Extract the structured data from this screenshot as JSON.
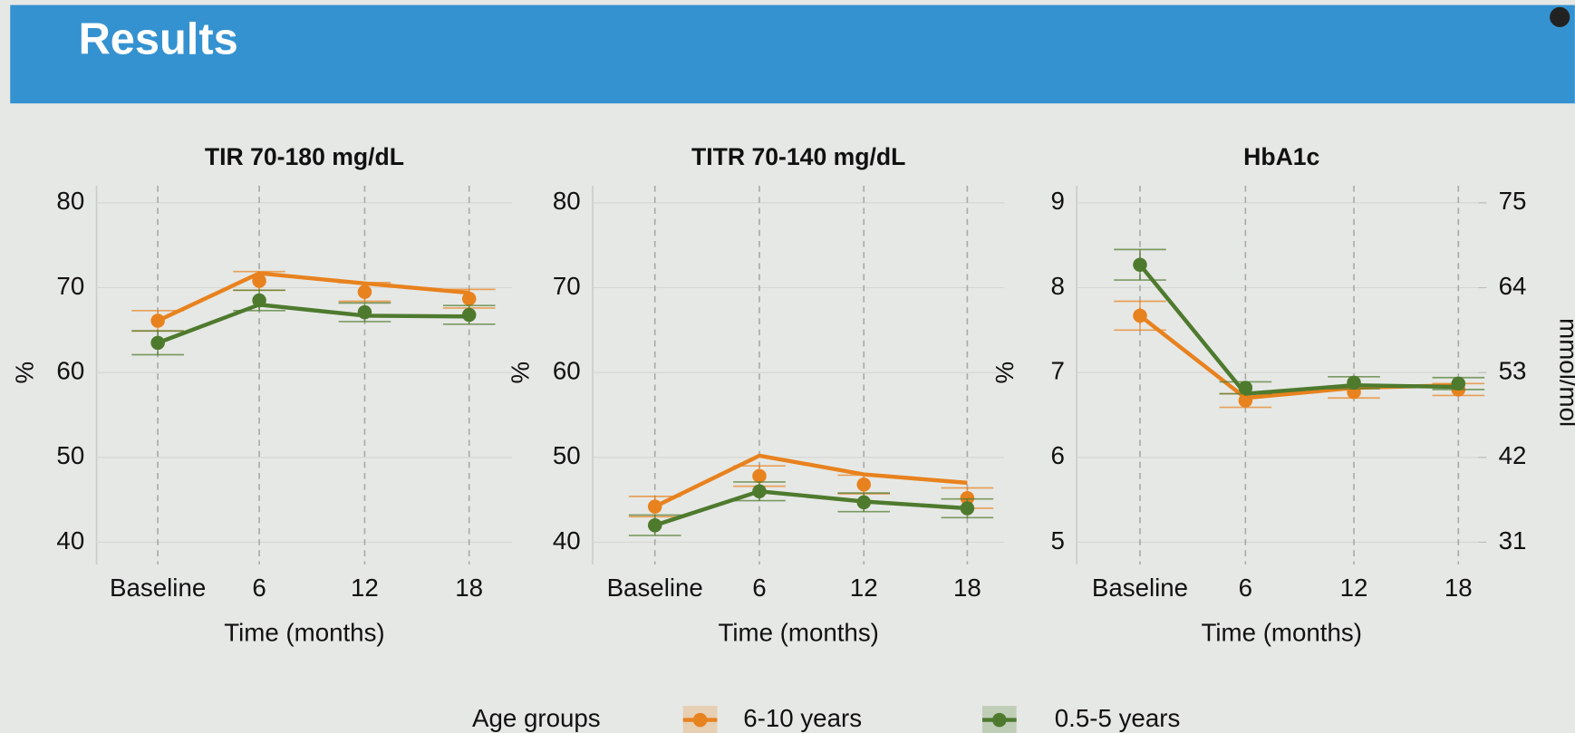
{
  "title": "Results",
  "legend_title": "Age groups",
  "chart_data": [
    {
      "type": "line",
      "title": "TIR 70-180 mg/dL",
      "ylabel": "%",
      "xlabel": "Time (months)",
      "categories": [
        "Baseline",
        "6",
        "12",
        "18"
      ],
      "ylim": [
        40,
        80
      ],
      "yticks": [
        40,
        50,
        60,
        70,
        80
      ],
      "grid": true,
      "series": [
        {
          "name": "6-10 years",
          "color": "#e8821e",
          "values": [
            66.1,
            70.8,
            69.5,
            68.7
          ],
          "errors": [
            1.2,
            1.1,
            1.1,
            1.1
          ],
          "fit": [
            66.1,
            71.7,
            70.5,
            69.4
          ]
        },
        {
          "name": "0.5-5 years",
          "color": "#4e7a2e",
          "values": [
            63.5,
            68.5,
            67.1,
            66.8
          ],
          "errors": [
            1.4,
            1.2,
            1.1,
            1.1
          ],
          "fit": [
            63.5,
            68.0,
            66.7,
            66.6
          ]
        }
      ]
    },
    {
      "type": "line",
      "title": "TITR 70-140 mg/dL",
      "ylabel": "%",
      "xlabel": "Time (months)",
      "categories": [
        "Baseline",
        "6",
        "12",
        "18"
      ],
      "ylim": [
        40,
        80
      ],
      "yticks": [
        40,
        50,
        60,
        70,
        80
      ],
      "grid": true,
      "series": [
        {
          "name": "6-10 years",
          "color": "#e8821e",
          "values": [
            44.2,
            47.8,
            46.8,
            45.2
          ],
          "errors": [
            1.2,
            1.2,
            1.1,
            1.2
          ],
          "fit": [
            44.2,
            50.2,
            48.0,
            47.0
          ]
        },
        {
          "name": "0.5-5 years",
          "color": "#4e7a2e",
          "values": [
            42.0,
            46.0,
            44.7,
            44.0
          ],
          "errors": [
            1.2,
            1.1,
            1.1,
            1.1
          ],
          "fit": [
            42.0,
            46.0,
            44.8,
            44.0
          ]
        }
      ]
    },
    {
      "type": "line",
      "title": "HbA1c",
      "ylabel": "%",
      "xlabel": "Time (months)",
      "y2label": "mmol/mol",
      "categories": [
        "Baseline",
        "6",
        "12",
        "18"
      ],
      "ylim": [
        5,
        9
      ],
      "yticks": [
        5,
        6,
        7,
        8,
        9
      ],
      "y2lim": [
        31,
        75
      ],
      "y2ticks": [
        31,
        42,
        53,
        64,
        75
      ],
      "grid": true,
      "series": [
        {
          "name": "6-10 years",
          "color": "#e8821e",
          "values": [
            7.67,
            6.67,
            6.77,
            6.8
          ],
          "errors": [
            0.17,
            0.08,
            0.07,
            0.07
          ],
          "fit": [
            7.67,
            6.7,
            6.82,
            6.85
          ]
        },
        {
          "name": "0.5-5 years",
          "color": "#4e7a2e",
          "values": [
            8.27,
            6.82,
            6.88,
            6.87
          ],
          "errors": [
            0.18,
            0.07,
            0.07,
            0.07
          ],
          "fit": [
            8.27,
            6.75,
            6.85,
            6.83
          ]
        }
      ]
    }
  ]
}
